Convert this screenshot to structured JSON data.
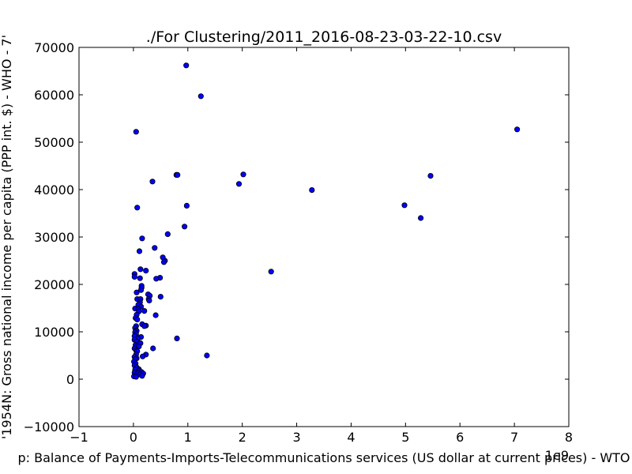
{
  "chart_data": {
    "type": "scatter",
    "title": "./For Clustering/2011_2016-08-23-03-22-10.csv",
    "xlabel": "p: Balance of Payments-Imports-Telecommunications services (US dollar at current prices) - WTO",
    "ylabel": "'1954N: Gross national income per capita (PPP int. $) - WHO - 7'",
    "x_offset_label": "1e9",
    "xlim": [
      -1,
      8
    ],
    "ylim": [
      -10000,
      70000
    ],
    "x_ticks": [
      -1,
      0,
      1,
      2,
      3,
      4,
      5,
      6,
      7,
      8
    ],
    "x_tick_labels": [
      "−1",
      "0",
      "1",
      "2",
      "3",
      "4",
      "5",
      "6",
      "7",
      "8"
    ],
    "y_ticks": [
      -10000,
      0,
      10000,
      20000,
      30000,
      40000,
      50000,
      60000,
      70000
    ],
    "y_tick_labels": [
      "−10000",
      "0",
      "10000",
      "20000",
      "30000",
      "40000",
      "50000",
      "60000",
      "70000"
    ],
    "grid": false,
    "marker_color": "#0000ff",
    "marker_edge": "#000000",
    "points": [
      [
        0.97,
        66200
      ],
      [
        1.24,
        59700
      ],
      [
        0.05,
        52200
      ],
      [
        7.05,
        52700
      ],
      [
        0.79,
        43100
      ],
      [
        0.81,
        43100
      ],
      [
        2.02,
        43200
      ],
      [
        5.46,
        42900
      ],
      [
        0.35,
        41700
      ],
      [
        1.94,
        41200
      ],
      [
        3.28,
        39900
      ],
      [
        0.98,
        36600
      ],
      [
        4.98,
        36700
      ],
      [
        0.07,
        36200
      ],
      [
        5.28,
        34000
      ],
      [
        0.94,
        32200
      ],
      [
        0.63,
        30600
      ],
      [
        0.16,
        29700
      ],
      [
        0.39,
        27700
      ],
      [
        0.11,
        27000
      ],
      [
        0.54,
        25700
      ],
      [
        0.58,
        25000
      ],
      [
        0.56,
        24700
      ],
      [
        2.53,
        22700
      ],
      [
        0.13,
        23200
      ],
      [
        0.23,
        22900
      ],
      [
        0.02,
        22200
      ],
      [
        0.02,
        21600
      ],
      [
        0.12,
        21300
      ],
      [
        0.49,
        21400
      ],
      [
        0.42,
        21200
      ],
      [
        0.15,
        19700
      ],
      [
        0.15,
        19300
      ],
      [
        0.14,
        18800
      ],
      [
        0.06,
        18300
      ],
      [
        0.27,
        17900
      ],
      [
        0.3,
        17600
      ],
      [
        0.5,
        17400
      ],
      [
        0.28,
        16900
      ],
      [
        0.29,
        16600
      ],
      [
        0.07,
        16900
      ],
      [
        0.13,
        16900
      ],
      [
        0.12,
        16200
      ],
      [
        0.09,
        15700
      ],
      [
        0.14,
        15300
      ],
      [
        0.03,
        14900
      ],
      [
        0.09,
        14800
      ],
      [
        0.1,
        14300
      ],
      [
        0.2,
        14400
      ],
      [
        0.06,
        13600
      ],
      [
        0.41,
        13500
      ],
      [
        0.04,
        12900
      ],
      [
        0.07,
        12600
      ],
      [
        0.16,
        11600
      ],
      [
        0.23,
        11300
      ],
      [
        0.2,
        11200
      ],
      [
        0.05,
        11200
      ],
      [
        0.03,
        10800
      ],
      [
        0.05,
        10300
      ],
      [
        0.06,
        10200
      ],
      [
        0.03,
        9900
      ],
      [
        0.05,
        9500
      ],
      [
        0.02,
        9100
      ],
      [
        0.14,
        8900
      ],
      [
        0.8,
        8600
      ],
      [
        0.08,
        8600
      ],
      [
        0.02,
        8300
      ],
      [
        0.06,
        7900
      ],
      [
        0.13,
        7600
      ],
      [
        0.04,
        7200
      ],
      [
        0.07,
        7000
      ],
      [
        0.1,
        6900
      ],
      [
        0.36,
        6500
      ],
      [
        0.02,
        6500
      ],
      [
        0.05,
        6100
      ],
      [
        0.07,
        5900
      ],
      [
        0.23,
        5200
      ],
      [
        0.05,
        5200
      ],
      [
        0.17,
        4800
      ],
      [
        1.35,
        5000
      ],
      [
        0.02,
        4700
      ],
      [
        0.06,
        4400
      ],
      [
        0.03,
        4200
      ],
      [
        0.01,
        3700
      ],
      [
        0.04,
        3300
      ],
      [
        0.02,
        2900
      ],
      [
        0.06,
        2500
      ],
      [
        0.1,
        2100
      ],
      [
        0.03,
        2000
      ],
      [
        0.11,
        1800
      ],
      [
        0.15,
        1500
      ],
      [
        0.02,
        1400
      ],
      [
        0.08,
        1300
      ],
      [
        0.18,
        1200
      ],
      [
        0.12,
        1000
      ],
      [
        0.04,
        800
      ],
      [
        0.01,
        600
      ],
      [
        0.16,
        700
      ],
      [
        0.05,
        500
      ]
    ]
  }
}
